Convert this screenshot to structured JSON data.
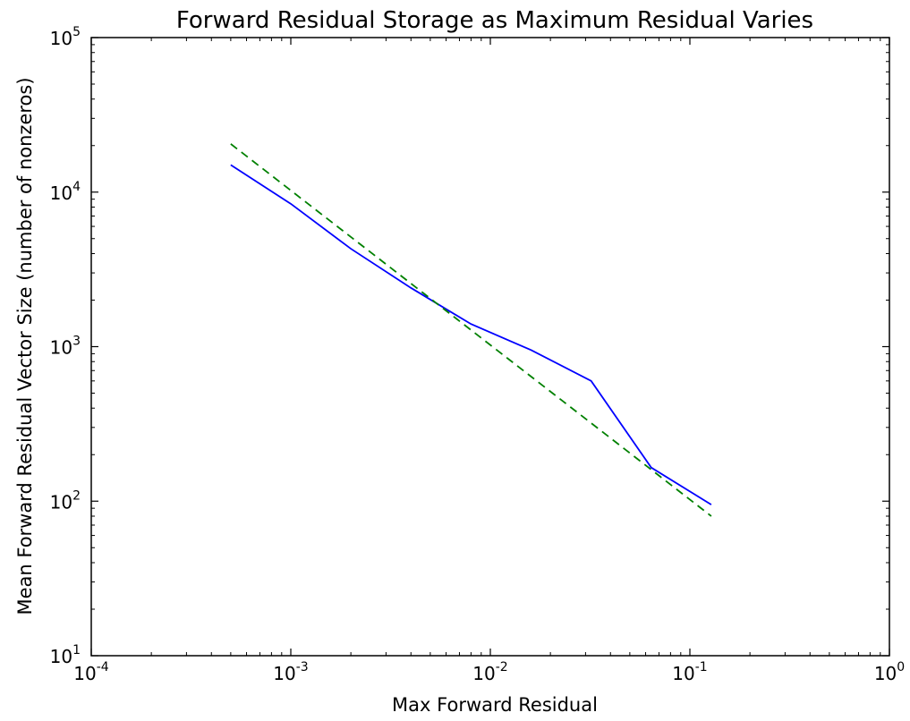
{
  "chart_data": {
    "type": "line",
    "title": "Forward Residual Storage as Maximum Residual Varies",
    "xlabel": "Max Forward Residual",
    "ylabel": "Mean Forward Residual Vector Size (number of nonzeros)",
    "xscale": "log",
    "yscale": "log",
    "xlim": [
      0.0001,
      1
    ],
    "ylim": [
      10,
      100000
    ],
    "grid": false,
    "x_ticks": [
      {
        "base": "10",
        "exp": "-4",
        "value": 0.0001
      },
      {
        "base": "10",
        "exp": "-3",
        "value": 0.001
      },
      {
        "base": "10",
        "exp": "-2",
        "value": 0.01
      },
      {
        "base": "10",
        "exp": "-1",
        "value": 0.1
      },
      {
        "base": "10",
        "exp": "0",
        "value": 1
      }
    ],
    "y_ticks": [
      {
        "base": "10",
        "exp": "1",
        "value": 10
      },
      {
        "base": "10",
        "exp": "2",
        "value": 100
      },
      {
        "base": "10",
        "exp": "3",
        "value": 1000
      },
      {
        "base": "10",
        "exp": "4",
        "value": 10000
      },
      {
        "base": "10",
        "exp": "5",
        "value": 100000
      }
    ],
    "series": [
      {
        "style": "solid",
        "color": "#0000ff",
        "x": [
          0.0005,
          0.001,
          0.002,
          0.004,
          0.008,
          0.016,
          0.032,
          0.064,
          0.128
        ],
        "y": [
          15000,
          8400,
          4300,
          2400,
          1400,
          950,
          600,
          165,
          95
        ]
      },
      {
        "style": "dashed",
        "color": "#008000",
        "x": [
          0.0005,
          0.128
        ],
        "y": [
          20500,
          80
        ]
      }
    ]
  }
}
